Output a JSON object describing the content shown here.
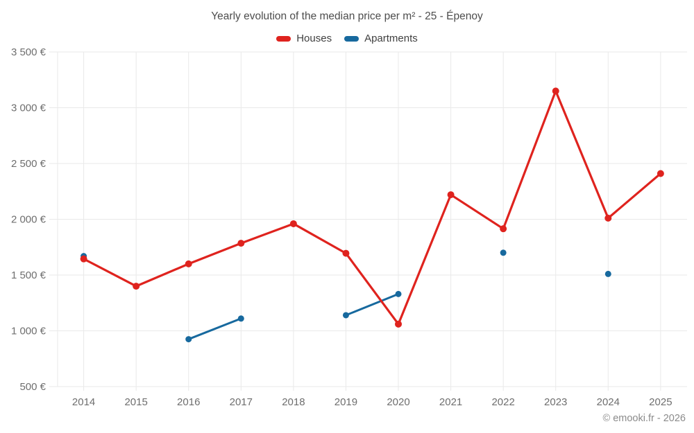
{
  "page": {
    "title": "Yearly evolution of the median price per m² - 25 - Épenoy",
    "footer": "© emooki.fr - 2026"
  },
  "chart_data": {
    "type": "line",
    "title": "Yearly evolution of the median price per m² - 25 - Épenoy",
    "categories": [
      "2014",
      "2015",
      "2016",
      "2017",
      "2018",
      "2019",
      "2020",
      "2021",
      "2022",
      "2023",
      "2024",
      "2025"
    ],
    "series": [
      {
        "name": "Houses",
        "color": "#df231e",
        "values": [
          1645,
          1400,
          1600,
          1785,
          1960,
          1695,
          1060,
          2220,
          1915,
          3150,
          2010,
          2410
        ]
      },
      {
        "name": "Apartments",
        "color": "#17699e",
        "values": [
          1670,
          null,
          925,
          1110,
          null,
          1140,
          1330,
          null,
          1700,
          null,
          1510,
          null
        ]
      }
    ],
    "y_axis": {
      "min": 500,
      "max": 3500,
      "tick_step": 500,
      "tick_labels": [
        "500 €",
        "1 000 €",
        "1 500 €",
        "2 000 €",
        "2 500 €",
        "3 000 €",
        "3 500 €"
      ],
      "unit": "€"
    },
    "x_axis": {
      "tick_labels": [
        "2014",
        "2015",
        "2016",
        "2017",
        "2018",
        "2019",
        "2020",
        "2021",
        "2022",
        "2023",
        "2024",
        "2025"
      ]
    },
    "grid": true,
    "legend_position": "top",
    "colors": {
      "grid_line": "#e9e9e9",
      "tick_label": "#6e6e6e",
      "title_text": "#4d4d4d",
      "footer_text": "#8a8a8a",
      "background": "#ffffff"
    }
  }
}
